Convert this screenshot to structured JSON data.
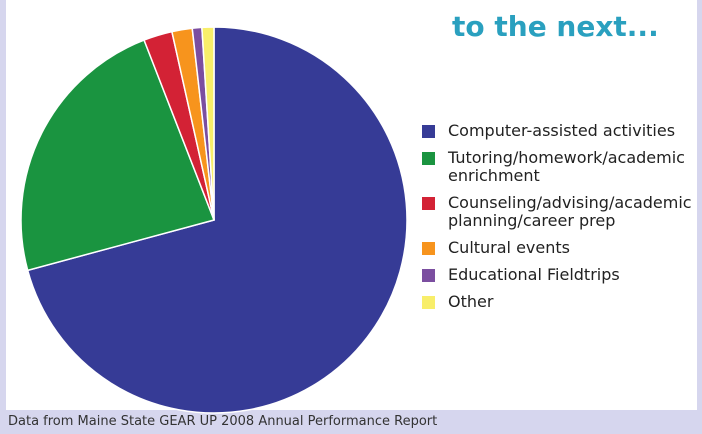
{
  "title": {
    "line1": "",
    "line2": "to the next..."
  },
  "footer": "Data from Maine State GEAR UP 2008 Annual Performance Report",
  "chart_data": {
    "type": "pie",
    "title": "",
    "start_angle_deg": 0,
    "direction": "clockwise",
    "legend_position": "right",
    "slices": [
      {
        "label": "Computer-assisted activities",
        "value": 70.8,
        "color": "#363b96"
      },
      {
        "label": "Tutoring/homework/academic enrichment",
        "value": 23.3,
        "color": "#1a9440"
      },
      {
        "label": "Counseling/advising/academic planning/career prep",
        "value": 2.4,
        "color": "#d32235"
      },
      {
        "label": "Cultural events",
        "value": 1.7,
        "color": "#f7941d"
      },
      {
        "label": "Educational Fieldtrips",
        "value": 0.8,
        "color": "#7b4ea0"
      },
      {
        "label": "Other",
        "value": 1.0,
        "color": "#f8ee6a"
      }
    ]
  }
}
